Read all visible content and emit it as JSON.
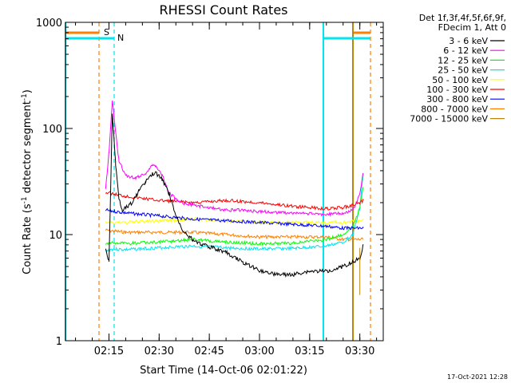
{
  "chart_data": {
    "type": "line",
    "title": "RHESSI Count Rates",
    "xlabel": "Start Time (14-Oct-06 02:01:22)",
    "ylabel": "Count Rate (s",
    "ylabel_sup": "-1",
    "ylabel_mid": " detector segment",
    "ylabel_sup2": "-1",
    "ylabel_end": ")",
    "yscale": "log",
    "ylim": [
      1,
      1000
    ],
    "xlim": [
      "02:02",
      "03:37"
    ],
    "x_ticks": [
      "02:15",
      "02:30",
      "02:45",
      "03:00",
      "03:15",
      "03:30"
    ],
    "y_ticks": [
      "1",
      "10",
      "100",
      "1000"
    ],
    "legend_header": [
      "Det 1f,3f,4f,5f,6f,9f,",
      "FDecim 1, Att 0"
    ],
    "legend_position": "top-right",
    "flags": [
      {
        "label": "S",
        "color": "#ff7f00"
      },
      {
        "label": "N",
        "color": "#00e5ee"
      }
    ],
    "timestamp": "17-Oct-2021 12:28",
    "series": [
      {
        "name": "3 - 6 keV",
        "color": "#000000",
        "points": [
          [
            "02:14",
            7.5
          ],
          [
            "02:15",
            5.5
          ],
          [
            "02:16",
            140
          ],
          [
            "02:17",
            45
          ],
          [
            "02:18",
            22
          ],
          [
            "02:19",
            17
          ],
          [
            "02:20",
            18
          ],
          [
            "02:22",
            20
          ],
          [
            "02:24",
            26
          ],
          [
            "02:26",
            32
          ],
          [
            "02:28",
            37
          ],
          [
            "02:29",
            38
          ],
          [
            "02:31",
            33
          ],
          [
            "02:33",
            24
          ],
          [
            "02:35",
            15
          ],
          [
            "02:37",
            11
          ],
          [
            "02:40",
            9
          ],
          [
            "02:43",
            8
          ],
          [
            "02:46",
            7.5
          ],
          [
            "02:50",
            6.8
          ],
          [
            "02:55",
            5.5
          ],
          [
            "03:00",
            4.6
          ],
          [
            "03:05",
            4.2
          ],
          [
            "03:10",
            4.2
          ],
          [
            "03:15",
            4.5
          ],
          [
            "03:20",
            4.5
          ],
          [
            "03:25",
            5
          ],
          [
            "03:30",
            6
          ],
          [
            "03:31",
            8
          ]
        ]
      },
      {
        "name": "6 - 12 keV",
        "color": "#ff00ff",
        "points": [
          [
            "02:14",
            27
          ],
          [
            "02:15",
            60
          ],
          [
            "02:16",
            185
          ],
          [
            "02:17",
            90
          ],
          [
            "02:18",
            50
          ],
          [
            "02:20",
            36
          ],
          [
            "02:23",
            34
          ],
          [
            "02:26",
            38
          ],
          [
            "02:28",
            45
          ],
          [
            "02:29",
            45
          ],
          [
            "02:31",
            36
          ],
          [
            "02:33",
            25
          ],
          [
            "02:36",
            20
          ],
          [
            "02:40",
            19
          ],
          [
            "02:45",
            18
          ],
          [
            "02:50",
            17
          ],
          [
            "02:55",
            17
          ],
          [
            "03:00",
            16.5
          ],
          [
            "03:10",
            16
          ],
          [
            "03:20",
            15.5
          ],
          [
            "03:25",
            16
          ],
          [
            "03:28",
            17
          ],
          [
            "03:30",
            24
          ],
          [
            "03:31",
            38
          ]
        ]
      },
      {
        "name": "12 - 25 keV",
        "color": "#00ff00",
        "points": [
          [
            "02:14",
            8
          ],
          [
            "02:16",
            8.5
          ],
          [
            "02:20",
            8.2
          ],
          [
            "02:30",
            8.5
          ],
          [
            "02:40",
            9
          ],
          [
            "02:50",
            8.5
          ],
          [
            "03:00",
            8.2
          ],
          [
            "03:10",
            8.3
          ],
          [
            "03:20",
            9
          ],
          [
            "03:25",
            10
          ],
          [
            "03:28",
            12
          ],
          [
            "03:30",
            18
          ],
          [
            "03:31",
            28
          ]
        ]
      },
      {
        "name": "25 - 50 keV",
        "color": "#00e5ee",
        "points": [
          [
            "02:14",
            7
          ],
          [
            "02:16",
            7.3
          ],
          [
            "02:20",
            7.2
          ],
          [
            "02:30",
            7.5
          ],
          [
            "02:40",
            7.8
          ],
          [
            "02:50",
            7.5
          ],
          [
            "03:00",
            7.3
          ],
          [
            "03:10",
            7.4
          ],
          [
            "03:20",
            7.8
          ],
          [
            "03:25",
            8.5
          ],
          [
            "03:28",
            10
          ],
          [
            "03:30",
            18
          ],
          [
            "03:31",
            38
          ]
        ]
      },
      {
        "name": "50 - 100 keV",
        "color": "#ffff00",
        "points": [
          [
            "02:14",
            13
          ],
          [
            "02:20",
            13
          ],
          [
            "02:30",
            13.5
          ],
          [
            "02:40",
            14
          ],
          [
            "02:50",
            13.5
          ],
          [
            "03:00",
            13
          ],
          [
            "03:10",
            13
          ],
          [
            "03:20",
            13
          ],
          [
            "03:25",
            13
          ],
          [
            "03:30",
            13.5
          ],
          [
            "03:31",
            14
          ]
        ]
      },
      {
        "name": "100 - 300 keV",
        "color": "#ff0000",
        "points": [
          [
            "02:14",
            25
          ],
          [
            "02:20",
            23
          ],
          [
            "02:30",
            21
          ],
          [
            "02:40",
            20
          ],
          [
            "02:50",
            21
          ],
          [
            "03:00",
            20
          ],
          [
            "03:10",
            18.5
          ],
          [
            "03:20",
            17.5
          ],
          [
            "03:25",
            18
          ],
          [
            "03:28",
            19
          ],
          [
            "03:30",
            20
          ],
          [
            "03:31",
            21
          ]
        ]
      },
      {
        "name": "300 - 800 keV",
        "color": "#0000ff",
        "points": [
          [
            "02:14",
            17
          ],
          [
            "02:20",
            16
          ],
          [
            "02:30",
            15
          ],
          [
            "02:40",
            14
          ],
          [
            "02:50",
            13.5
          ],
          [
            "03:00",
            13
          ],
          [
            "03:10",
            12.5
          ],
          [
            "03:20",
            12
          ],
          [
            "03:25",
            11.5
          ],
          [
            "03:30",
            11.5
          ],
          [
            "03:31",
            11.5
          ]
        ]
      },
      {
        "name": "800 - 7000 keV",
        "color": "#ff7f00",
        "points": [
          [
            "02:14",
            11
          ],
          [
            "02:20",
            10.5
          ],
          [
            "02:30",
            10.5
          ],
          [
            "02:40",
            10.5
          ],
          [
            "02:50",
            10
          ],
          [
            "03:00",
            9.5
          ],
          [
            "03:10",
            9.5
          ],
          [
            "03:20",
            9.5
          ],
          [
            "03:25",
            9
          ],
          [
            "03:30",
            9
          ],
          [
            "03:31",
            9
          ]
        ]
      },
      {
        "name": "7000 - 15000 keV",
        "color": "#b8860b",
        "points": [
          [
            "03:30",
            7.5
          ],
          [
            "03:30",
            2.7
          ]
        ]
      }
    ]
  }
}
